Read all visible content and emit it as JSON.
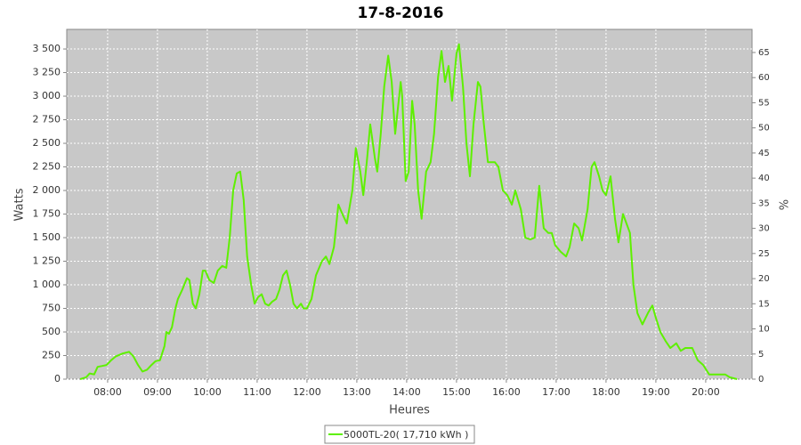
{
  "chart_data": {
    "type": "line",
    "title": "17-8-2016",
    "x_label": "Heures",
    "y_label": "Watts",
    "y2_label": "%",
    "xlim": [
      7.18,
      20.93
    ],
    "xticks": [
      {
        "value": 8,
        "label": "08:00"
      },
      {
        "value": 9,
        "label": "09:00"
      },
      {
        "value": 10,
        "label": "10:00"
      },
      {
        "value": 11,
        "label": "11:00"
      },
      {
        "value": 12,
        "label": "12:00"
      },
      {
        "value": 13,
        "label": "13:00"
      },
      {
        "value": 14,
        "label": "14:00"
      },
      {
        "value": 15,
        "label": "15:00"
      },
      {
        "value": 16,
        "label": "16:00"
      },
      {
        "value": 17,
        "label": "17:00"
      },
      {
        "value": 18,
        "label": "18:00"
      },
      {
        "value": 19,
        "label": "19:00"
      },
      {
        "value": 20,
        "label": "20:00"
      }
    ],
    "ylim": [
      0,
      3708
    ],
    "yticks": [
      0,
      250,
      500,
      750,
      {
        "value": 1000,
        "label": "1 000"
      },
      {
        "value": 1250,
        "label": "1 250"
      },
      {
        "value": 1500,
        "label": "1 500"
      },
      {
        "value": 1750,
        "label": "1 750"
      },
      {
        "value": 2000,
        "label": "2 000"
      },
      {
        "value": 2250,
        "label": "2 250"
      },
      {
        "value": 2500,
        "label": "2 500"
      },
      {
        "value": 2750,
        "label": "2 750"
      },
      {
        "value": 3000,
        "label": "3 000"
      },
      {
        "value": 3250,
        "label": "3 250"
      },
      {
        "value": 3500,
        "label": "3 500"
      }
    ],
    "y2lim": [
      0,
      69.6
    ],
    "y2ticks": [
      0,
      5,
      10,
      15,
      20,
      25,
      30,
      35,
      40,
      45,
      50,
      55,
      60,
      65
    ],
    "grid": true,
    "legend": "bottom",
    "x": [
      7.45,
      7.57,
      7.64,
      7.73,
      7.8,
      7.89,
      7.98,
      8.07,
      8.16,
      8.29,
      8.43,
      8.52,
      8.61,
      8.7,
      8.79,
      8.88,
      8.96,
      9.05,
      9.14,
      9.18,
      9.23,
      9.29,
      9.36,
      9.41,
      9.5,
      9.59,
      9.64,
      9.71,
      9.77,
      9.84,
      9.91,
      9.96,
      10.04,
      10.13,
      10.21,
      10.3,
      10.38,
      10.45,
      10.52,
      10.59,
      10.66,
      10.73,
      10.8,
      10.88,
      10.95,
      11.02,
      11.09,
      11.16,
      11.23,
      11.3,
      11.38,
      11.45,
      11.52,
      11.59,
      11.66,
      11.73,
      11.8,
      11.88,
      11.93,
      12.0,
      12.09,
      12.18,
      12.3,
      12.38,
      12.45,
      12.54,
      12.63,
      12.71,
      12.8,
      12.91,
      12.98,
      13.07,
      13.13,
      13.2,
      13.27,
      13.36,
      13.41,
      13.48,
      13.55,
      13.63,
      13.7,
      13.77,
      13.88,
      13.91,
      13.98,
      14.04,
      14.11,
      14.16,
      14.23,
      14.3,
      14.39,
      14.48,
      14.55,
      14.63,
      14.7,
      14.77,
      14.84,
      14.91,
      15.0,
      15.05,
      15.13,
      15.2,
      15.27,
      15.34,
      15.43,
      15.48,
      15.55,
      15.63,
      15.77,
      15.84,
      15.93,
      16.02,
      16.11,
      16.18,
      16.29,
      16.38,
      16.48,
      16.57,
      16.66,
      16.75,
      16.84,
      16.91,
      16.98,
      17.09,
      17.2,
      17.27,
      17.36,
      17.45,
      17.52,
      17.63,
      17.71,
      17.77,
      17.86,
      17.93,
      18.0,
      18.09,
      18.18,
      18.25,
      18.34,
      18.41,
      18.48,
      18.55,
      18.63,
      18.73,
      18.84,
      18.93,
      19.0,
      19.09,
      19.2,
      19.29,
      19.41,
      19.5,
      19.59,
      19.73,
      19.84,
      19.95,
      20.07,
      20.3,
      20.39,
      20.48,
      20.63
    ],
    "series": [
      {
        "name": "5000TL-20( 17,710 kWh )",
        "color": "#5ef000",
        "values": [
          0,
          20,
          60,
          50,
          130,
          140,
          150,
          200,
          240,
          270,
          290,
          240,
          150,
          80,
          100,
          150,
          190,
          200,
          350,
          500,
          480,
          550,
          750,
          850,
          950,
          1070,
          1050,
          800,
          750,
          900,
          1150,
          1150,
          1050,
          1020,
          1150,
          1200,
          1180,
          1500,
          2000,
          2180,
          2200,
          1900,
          1300,
          1000,
          800,
          870,
          900,
          800,
          780,
          820,
          850,
          950,
          1100,
          1150,
          1000,
          800,
          750,
          800,
          750,
          750,
          850,
          1100,
          1250,
          1300,
          1220,
          1400,
          1850,
          1750,
          1650,
          2000,
          2450,
          2200,
          1950,
          2300,
          2700,
          2350,
          2200,
          2600,
          3100,
          3430,
          3150,
          2600,
          3150,
          3000,
          2100,
          2200,
          2950,
          2700,
          2000,
          1700,
          2200,
          2300,
          2600,
          3200,
          3480,
          3150,
          3320,
          2950,
          3450,
          3550,
          3100,
          2500,
          2150,
          2700,
          3150,
          3100,
          2700,
          2300,
          2300,
          2250,
          2000,
          1950,
          1850,
          2000,
          1800,
          1500,
          1480,
          1500,
          2050,
          1600,
          1550,
          1550,
          1420,
          1350,
          1300,
          1400,
          1650,
          1600,
          1470,
          1800,
          2250,
          2300,
          2150,
          2000,
          1950,
          2150,
          1700,
          1450,
          1750,
          1650,
          1550,
          1000,
          700,
          580,
          700,
          780,
          650,
          500,
          400,
          330,
          380,
          300,
          330,
          330,
          200,
          150,
          50,
          50,
          50,
          20,
          0
        ]
      }
    ]
  }
}
